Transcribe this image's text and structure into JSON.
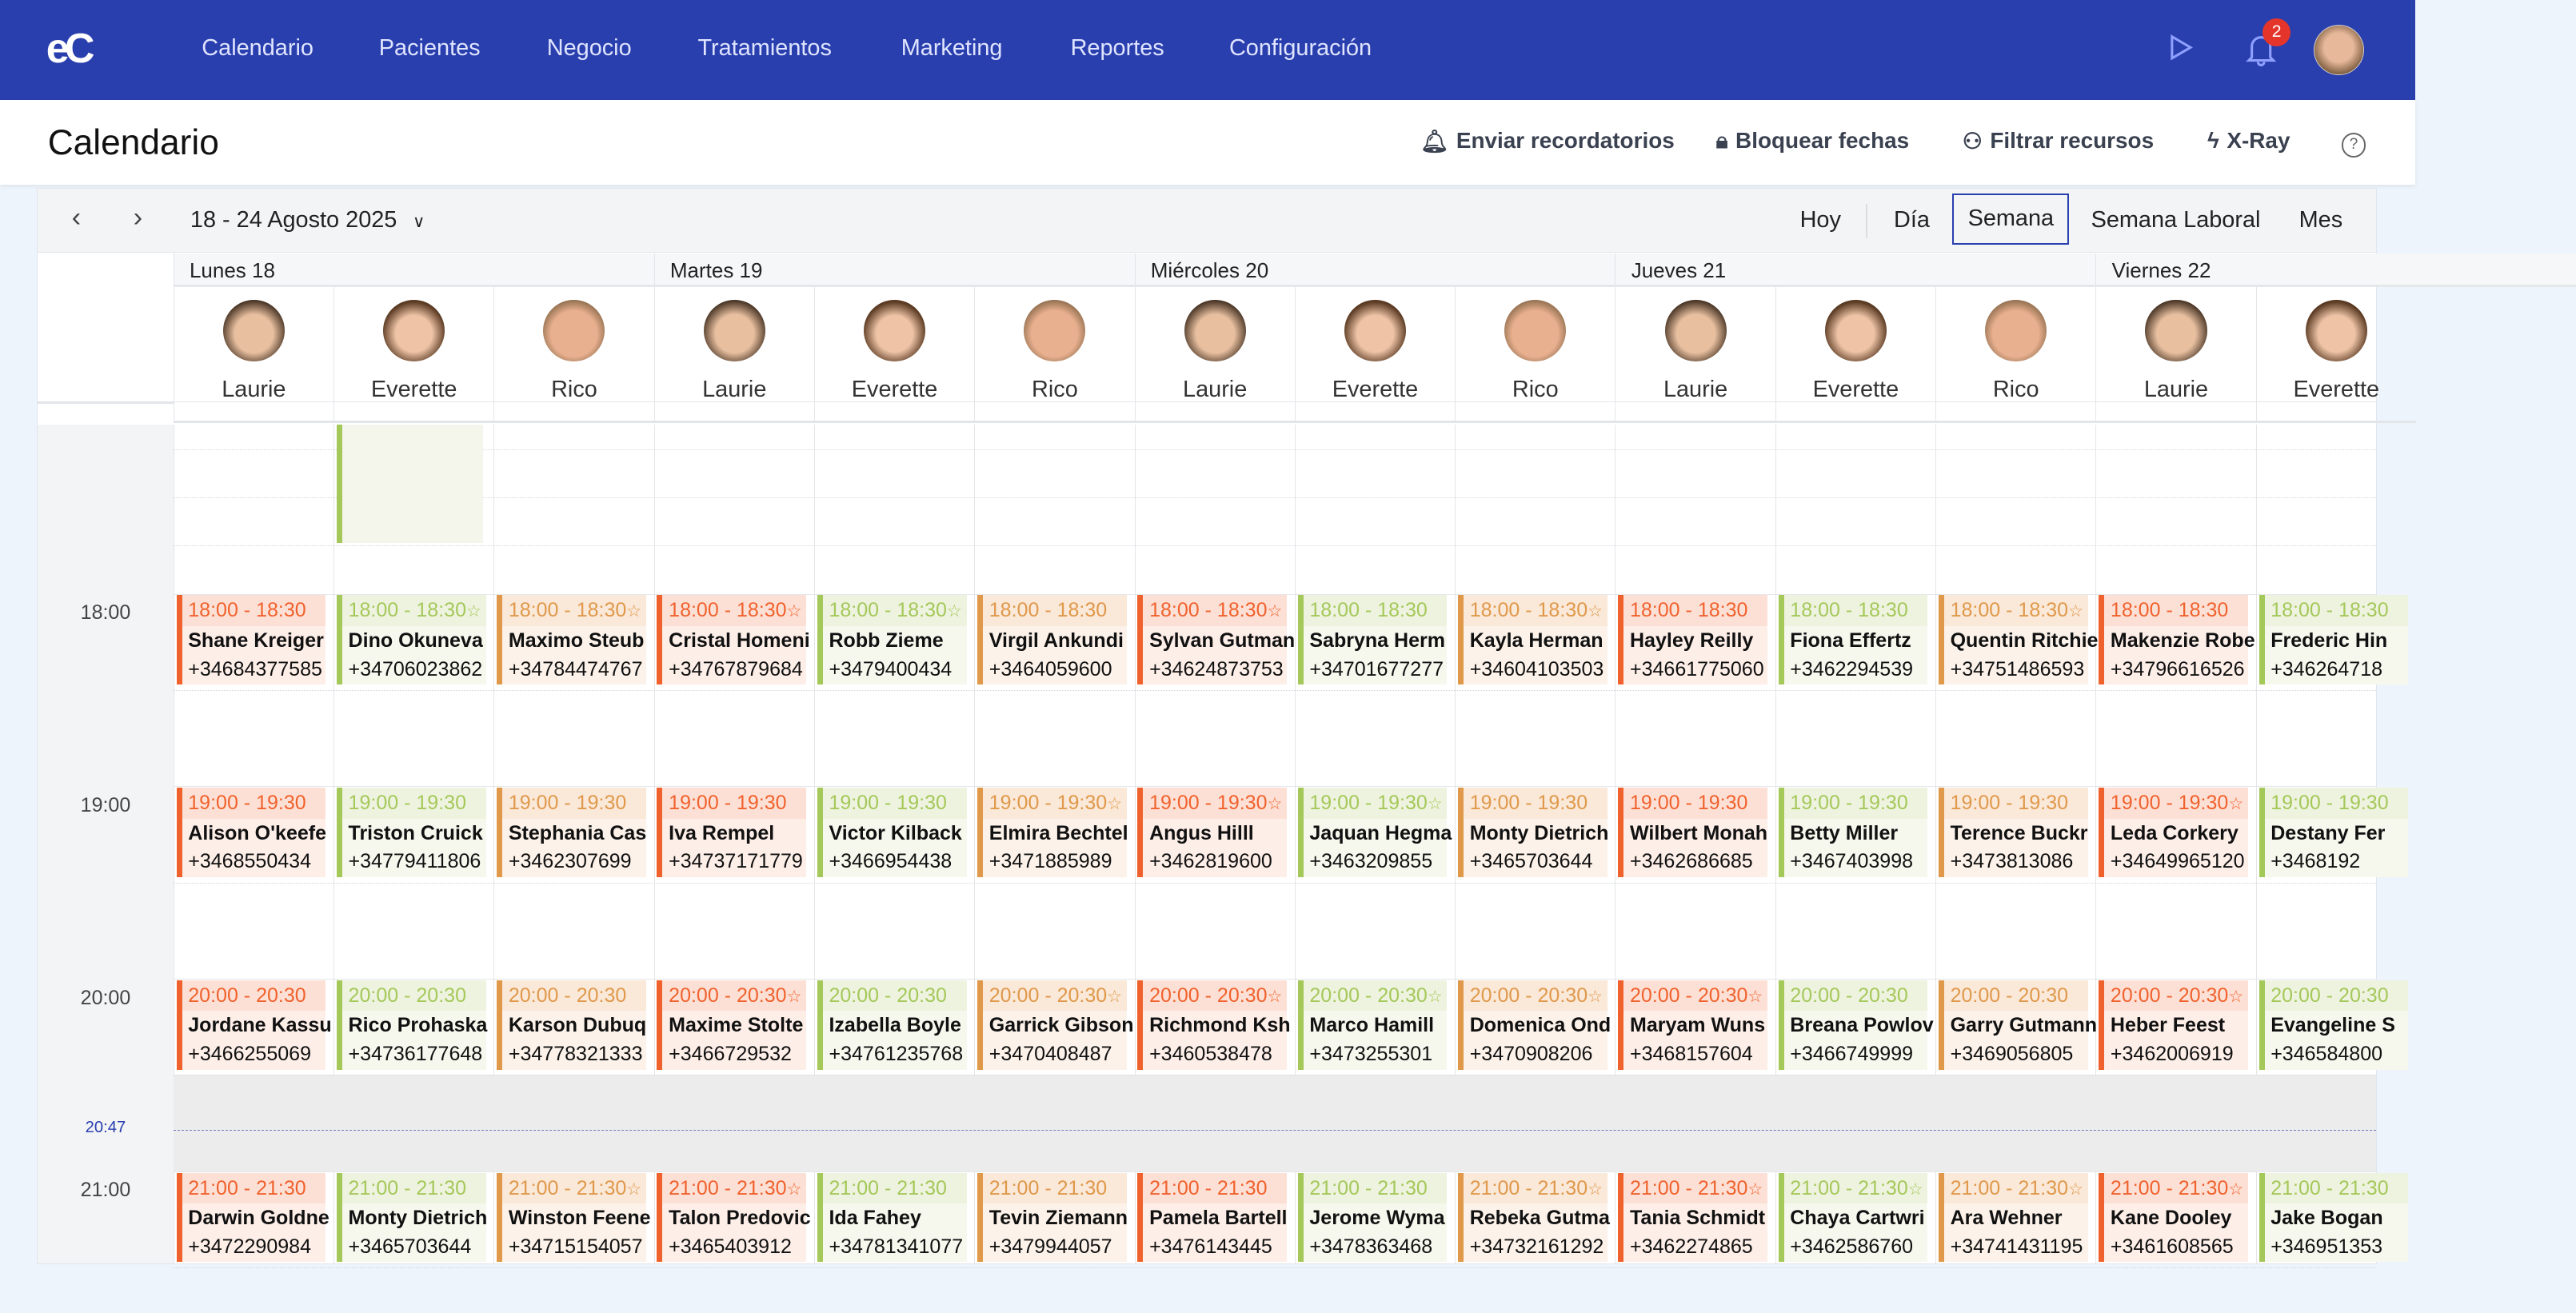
{
  "nav": {
    "logo": "eC",
    "items": [
      "Calendario",
      "Pacientes",
      "Negocio",
      "Tratamientos",
      "Marketing",
      "Reportes",
      "Configuración"
    ],
    "notifications": "2"
  },
  "header": {
    "title": "Calendario",
    "actions": [
      "Enviar recordatorios",
      "Bloquear fechas",
      "Filtrar recursos",
      "X-Ray"
    ],
    "help": "?"
  },
  "toolbar": {
    "range": "18 - 24 Agosto 2025",
    "today": "Hoy",
    "views": [
      "Día",
      "Semana",
      "Semana Laboral",
      "Mes"
    ],
    "active_view": "Semana"
  },
  "days": [
    "Lunes 18",
    "Martes 19",
    "Miércoles 20",
    "Jueves 21",
    "Viernes 22"
  ],
  "resources": [
    {
      "name": "Laurie",
      "color": "#f0622d",
      "head": "#fde0d5",
      "body": "#fdeee8"
    },
    {
      "name": "Everette",
      "color": "#a5c85a",
      "head": "#eef3df",
      "body": "#f6f8ee"
    },
    {
      "name": "Rico",
      "color": "#e0994b",
      "head": "#fae8d8",
      "body": "#fcf2ea"
    }
  ],
  "hours": [
    "18:00",
    "19:00",
    "20:00",
    "21:00"
  ],
  "now": "20:47",
  "rows": [
    {
      "time": "18:00 - 18:30",
      "items": [
        [
          "Shane Kreiger",
          "+34684377585",
          false
        ],
        [
          "Dino Okuneva",
          "+34706023862",
          true
        ],
        [
          "Maximo Steub",
          "+34784474767",
          true
        ],
        [
          "Cristal Homeni",
          "+34767879684",
          true
        ],
        [
          "Robb Zieme",
          "+3479400434",
          true
        ],
        [
          "Virgil Ankundi",
          "+3464059600",
          false
        ],
        [
          "Sylvan Gutman",
          "+34624873753",
          true
        ],
        [
          "Sabryna Herm",
          "+34701677277",
          false
        ],
        [
          "Kayla Herman",
          "+34604103503",
          true
        ],
        [
          "Hayley Reilly",
          "+34661775060",
          false
        ],
        [
          "Fiona Effertz",
          "+3462294539",
          false
        ],
        [
          "Quentin Ritchie",
          "+34751486593",
          true
        ],
        [
          "Makenzie Robe",
          "+34796616526",
          false
        ],
        [
          "Frederic Hin",
          "+346264718",
          false
        ]
      ]
    },
    {
      "time": "19:00 - 19:30",
      "items": [
        [
          "Alison O'keefe",
          "+3468550434",
          false
        ],
        [
          "Triston Cruick",
          "+34779411806",
          false
        ],
        [
          "Stephania Cas",
          "+3462307699",
          false
        ],
        [
          "Iva Rempel",
          "+34737171779",
          false
        ],
        [
          "Victor Kilback",
          "+3466954438",
          false
        ],
        [
          "Elmira Bechtel",
          "+3471885989",
          true
        ],
        [
          "Angus Hilll",
          "+3462819600",
          true
        ],
        [
          "Jaquan Hegma",
          "+3463209855",
          true
        ],
        [
          "Monty Dietrich",
          "+3465703644",
          false
        ],
        [
          "Wilbert Monah",
          "+3462686685",
          false
        ],
        [
          "Betty Miller",
          "+3467403998",
          false
        ],
        [
          "Terence Buckr",
          "+3473813086",
          false
        ],
        [
          "Leda Corkery",
          "+34649965120",
          true
        ],
        [
          "Destany Fer",
          "+3468192",
          false
        ]
      ]
    },
    {
      "time": "20:00 - 20:30",
      "items": [
        [
          "Jordane Kassu",
          "+3466255069",
          false
        ],
        [
          "Rico Prohaska",
          "+34736177648",
          false
        ],
        [
          "Karson Dubuq",
          "+34778321333",
          false
        ],
        [
          "Maxime Stolte",
          "+3466729532",
          true
        ],
        [
          "Izabella Boyle",
          "+34761235768",
          false
        ],
        [
          "Garrick Gibson",
          "+3470408487",
          true
        ],
        [
          "Richmond Ksh",
          "+3460538478",
          true
        ],
        [
          "Marco Hamill",
          "+3473255301",
          true
        ],
        [
          "Domenica Ond",
          "+3470908206",
          true
        ],
        [
          "Maryam Wuns",
          "+3468157604",
          true
        ],
        [
          "Breana Powlov",
          "+3466749999",
          false
        ],
        [
          "Garry Gutmann",
          "+3469056805",
          false
        ],
        [
          "Heber Feest",
          "+3462006919",
          true
        ],
        [
          "Evangeline S",
          "+346584800",
          false
        ]
      ]
    },
    {
      "time": "21:00 - 21:30",
      "items": [
        [
          "Darwin Goldne",
          "+3472290984",
          false
        ],
        [
          "Monty Dietrich",
          "+3465703644",
          false
        ],
        [
          "Winston Feene",
          "+34715154057",
          true
        ],
        [
          "Talon Predovic",
          "+3465403912",
          true
        ],
        [
          "Ida Fahey",
          "+34781341077",
          false
        ],
        [
          "Tevin Ziemann",
          "+3479944057",
          false
        ],
        [
          "Pamela Bartell",
          "+3476143445",
          false
        ],
        [
          "Jerome Wyma",
          "+3478363468",
          false
        ],
        [
          "Rebeka Gutma",
          "+34732161292",
          true
        ],
        [
          "Tania Schmidt",
          "+3462274865",
          true
        ],
        [
          "Chaya Cartwri",
          "+3462586760",
          true
        ],
        [
          "Ara Wehner",
          "+34741431195",
          true
        ],
        [
          "Kane Dooley",
          "+3461608565",
          true
        ],
        [
          "Jake Bogan",
          "+346951353",
          false
        ]
      ]
    }
  ]
}
